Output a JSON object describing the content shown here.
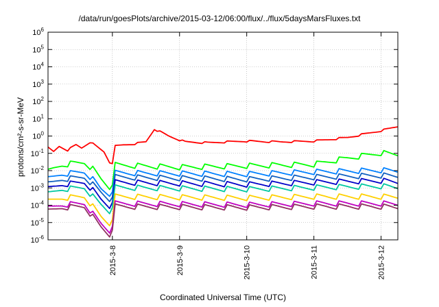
{
  "chart_data": {
    "type": "line",
    "title": "/data/run/goesPlots/archive/2015-03-12/06:00/flux/../flux/5daysMarsFluxes.txt",
    "xlabel": "Coordinated Universal Time (UTC)",
    "ylabel": "protons/cm²-s-sr-MeV",
    "y_scale": "log",
    "ylim": [
      1e-06,
      1000000.0
    ],
    "y_ticks": [
      "10-6",
      "10-5",
      "10-4",
      "10-3",
      "10-2",
      "10-1",
      "100",
      "101",
      "102",
      "103",
      "104",
      "105",
      "106"
    ],
    "xlim": [
      "2015-03-07 01:00",
      "2015-03-12 06:00"
    ],
    "x_ticks": [
      "2015-3-8",
      "2015-3-9",
      "2015-3-10",
      "2015-3-11",
      "2015-3-12"
    ],
    "grid": true,
    "legend": "none",
    "series": [
      {
        "color": "#ff0000",
        "points": [
          [
            "2015-03-07 01:00",
            0.2
          ],
          [
            "2015-03-07 03:00",
            0.12
          ],
          [
            "2015-03-07 05:00",
            0.25
          ],
          [
            "2015-03-07 08:00",
            0.15
          ],
          [
            "2015-03-07 11:00",
            0.3
          ],
          [
            "2015-03-07 13:00",
            0.2
          ],
          [
            "2015-03-07 16:00",
            0.45
          ],
          [
            "2015-03-07 21:00",
            0.12
          ],
          [
            "2015-03-07 23:00",
            0.03
          ],
          [
            "2015-03-08 00:00",
            0.028
          ],
          [
            "2015-03-08 01:00",
            0.25
          ],
          [
            "2015-03-08 04:00",
            0.3
          ],
          [
            "2015-03-08 08:00",
            0.35
          ],
          [
            "2015-03-08 12:00",
            0.45
          ],
          [
            "2015-03-08 15:00",
            2.5
          ],
          [
            "2015-03-08 20:00",
            1.0
          ],
          [
            "2015-03-09 02:00",
            0.45
          ],
          [
            "2015-03-09 10:00",
            0.4
          ],
          [
            "2015-03-09 23:00",
            0.5
          ],
          [
            "2015-03-10 12:00",
            0.45
          ],
          [
            "2015-03-11 00:00",
            0.5
          ],
          [
            "2015-03-11 12:00",
            0.8
          ],
          [
            "2015-03-12 00:00",
            2.0
          ],
          [
            "2015-03-12 06:00",
            3.5
          ]
        ]
      },
      {
        "color": "#00ff00",
        "points": [
          [
            "2015-03-07 01:00",
            0.008
          ],
          [
            "2015-03-07 03:00",
            0.012
          ],
          [
            "2015-03-07 06:00",
            0.02
          ],
          [
            "2015-03-07 10:00",
            0.025
          ],
          [
            "2015-03-07 14:00",
            0.028
          ],
          [
            "2015-03-07 17:00",
            0.012
          ],
          [
            "2015-03-07 20:00",
            0.003
          ],
          [
            "2015-03-07 23:00",
            0.001
          ],
          [
            "2015-03-08 00:00",
            0.002
          ],
          [
            "2015-03-08 01:00",
            0.02
          ],
          [
            "2015-03-09 00:00",
            0.015
          ],
          [
            "2015-03-10 00:00",
            0.018
          ],
          [
            "2015-03-11 00:00",
            0.022
          ],
          [
            "2015-03-11 12:00",
            0.05
          ],
          [
            "2015-03-12 00:00",
            0.1
          ],
          [
            "2015-03-12 06:00",
            0.08
          ]
        ]
      },
      {
        "color": "#0080ff",
        "points": [
          [
            "2015-03-07 01:00",
            0.003
          ],
          [
            "2015-03-07 06:00",
            0.006
          ],
          [
            "2015-03-07 14:00",
            0.008
          ],
          [
            "2015-03-07 17:00",
            0.003
          ],
          [
            "2015-03-07 20:00",
            0.0008
          ],
          [
            "2015-03-07 23:00",
            0.0004
          ],
          [
            "2015-03-08 00:00",
            0.0008
          ],
          [
            "2015-03-08 01:00",
            0.007
          ],
          [
            "2015-03-10 00:00",
            0.006
          ],
          [
            "2015-03-11 00:00",
            0.008
          ],
          [
            "2015-03-12 00:00",
            0.01
          ],
          [
            "2015-03-12 06:00",
            0.009
          ]
        ]
      },
      {
        "color": "#1060c0",
        "points": [
          [
            "2015-03-07 01:00",
            0.0015
          ],
          [
            "2015-03-07 06:00",
            0.003
          ],
          [
            "2015-03-07 14:00",
            0.004
          ],
          [
            "2015-03-07 17:00",
            0.0015
          ],
          [
            "2015-03-07 20:00",
            0.0005
          ],
          [
            "2015-03-07 23:00",
            0.0002
          ],
          [
            "2015-03-08 00:00",
            0.0004
          ],
          [
            "2015-03-08 01:00",
            0.004
          ],
          [
            "2015-03-10 00:00",
            0.003
          ],
          [
            "2015-03-11 00:00",
            0.004
          ],
          [
            "2015-03-12 00:00",
            0.005
          ],
          [
            "2015-03-12 06:00",
            0.0045
          ]
        ]
      },
      {
        "color": "#0000c8",
        "points": [
          [
            "2015-03-07 01:00",
            0.0008
          ],
          [
            "2015-03-07 06:00",
            0.0015
          ],
          [
            "2015-03-07 14:00",
            0.002
          ],
          [
            "2015-03-07 17:00",
            0.0007
          ],
          [
            "2015-03-07 20:00",
            0.0002
          ],
          [
            "2015-03-07 23:00",
            8e-05
          ],
          [
            "2015-03-08 00:00",
            0.0002
          ],
          [
            "2015-03-08 01:00",
            0.002
          ],
          [
            "2015-03-10 00:00",
            0.0015
          ],
          [
            "2015-03-11 00:00",
            0.002
          ],
          [
            "2015-03-12 00:00",
            0.0025
          ],
          [
            "2015-03-12 06:00",
            0.002
          ]
        ]
      },
      {
        "color": "#00c8a0",
        "points": [
          [
            "2015-03-07 01:00",
            0.0004
          ],
          [
            "2015-03-07 06:00",
            0.0008
          ],
          [
            "2015-03-07 14:00",
            0.001
          ],
          [
            "2015-03-07 17:00",
            0.0003
          ],
          [
            "2015-03-07 20:00",
            0.0001
          ],
          [
            "2015-03-07 23:00",
            4e-05
          ],
          [
            "2015-03-08 00:00",
            0.0001
          ],
          [
            "2015-03-08 01:00",
            0.001
          ],
          [
            "2015-03-10 00:00",
            0.0008
          ],
          [
            "2015-03-11 00:00",
            0.001
          ],
          [
            "2015-03-12 00:00",
            0.0012
          ],
          [
            "2015-03-12 06:00",
            0.001
          ]
        ]
      },
      {
        "color": "#ffd000",
        "points": [
          [
            "2015-03-07 01:00",
            0.00015
          ],
          [
            "2015-03-07 06:00",
            0.00025
          ],
          [
            "2015-03-07 14:00",
            0.0003
          ],
          [
            "2015-03-07 17:00",
            8e-05
          ],
          [
            "2015-03-07 20:00",
            2e-05
          ],
          [
            "2015-03-07 23:00",
            8e-06
          ],
          [
            "2015-03-08 00:00",
            2e-05
          ],
          [
            "2015-03-08 01:00",
            0.0003
          ],
          [
            "2015-03-10 00:00",
            0.00025
          ],
          [
            "2015-03-11 00:00",
            0.0003
          ],
          [
            "2015-03-12 00:00",
            0.0003
          ],
          [
            "2015-03-12 06:00",
            0.00028
          ]
        ]
      },
      {
        "color": "#c000c0",
        "points": [
          [
            "2015-03-07 01:00",
            6e-05
          ],
          [
            "2015-03-07 06:00",
            0.0001
          ],
          [
            "2015-03-07 14:00",
            0.00012
          ],
          [
            "2015-03-07 17:00",
            3e-05
          ],
          [
            "2015-03-07 20:00",
            8e-06
          ],
          [
            "2015-03-07 23:00",
            3e-06
          ],
          [
            "2015-03-08 00:00",
            8e-06
          ],
          [
            "2015-03-08 01:00",
            0.00012
          ],
          [
            "2015-03-10 00:00",
            0.0001
          ],
          [
            "2015-03-11 00:00",
            0.00012
          ],
          [
            "2015-03-12 00:00",
            0.00012
          ],
          [
            "2015-03-12 06:00",
            0.00011
          ]
        ]
      },
      {
        "color": "#903060",
        "points": [
          [
            "2015-03-07 01:00",
            4e-05
          ],
          [
            "2015-03-07 06:00",
            7e-05
          ],
          [
            "2015-03-07 14:00",
            8e-05
          ],
          [
            "2015-03-07 17:00",
            2e-05
          ],
          [
            "2015-03-07 20:00",
            5e-06
          ],
          [
            "2015-03-07 23:00",
            1.8e-06
          ],
          [
            "2015-03-08 00:00",
            5e-06
          ],
          [
            "2015-03-08 01:00",
            8e-05
          ],
          [
            "2015-03-10 00:00",
            7e-05
          ],
          [
            "2015-03-11 00:00",
            8e-05
          ],
          [
            "2015-03-12 00:00",
            8e-05
          ],
          [
            "2015-03-12 06:00",
            7e-05
          ]
        ]
      }
    ]
  }
}
